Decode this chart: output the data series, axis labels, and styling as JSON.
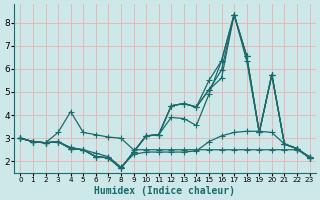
{
  "xlabel": "Humidex (Indice chaleur)",
  "ylabel": "",
  "bg_color": "#cde8e8",
  "grid_color": "#e8b8b8",
  "line_color": "#1a6b6b",
  "x_ticks": [
    0,
    1,
    2,
    3,
    4,
    5,
    6,
    7,
    8,
    9,
    10,
    11,
    12,
    13,
    14,
    15,
    16,
    17,
    18,
    19,
    20,
    21,
    22,
    23
  ],
  "y_ticks": [
    2,
    3,
    4,
    5,
    6,
    7,
    8
  ],
  "ylim": [
    1.5,
    8.8
  ],
  "xlim": [
    -0.5,
    23.5
  ],
  "lines": [
    {
      "x": [
        0,
        1,
        2,
        3,
        4,
        5,
        6,
        7,
        8,
        9,
        10,
        11,
        12,
        13,
        14,
        15,
        16,
        17,
        18,
        19,
        20,
        21,
        22,
        23
      ],
      "y": [
        3.0,
        2.85,
        2.8,
        3.25,
        4.15,
        3.25,
        3.15,
        3.05,
        3.0,
        2.5,
        2.5,
        2.5,
        2.5,
        2.5,
        2.5,
        2.5,
        2.5,
        2.5,
        2.5,
        2.5,
        2.5,
        2.5,
        2.5,
        2.2
      ]
    },
    {
      "x": [
        0,
        1,
        2,
        3,
        4,
        5,
        6,
        7,
        8,
        9,
        10,
        11,
        12,
        13,
        14,
        15,
        16,
        17,
        18,
        19,
        20,
        21,
        22,
        23
      ],
      "y": [
        3.0,
        2.85,
        2.8,
        2.85,
        2.6,
        2.5,
        2.35,
        2.2,
        1.75,
        2.3,
        2.4,
        2.4,
        2.4,
        2.4,
        2.45,
        2.85,
        3.1,
        3.25,
        3.3,
        3.3,
        3.25,
        2.75,
        2.55,
        2.2
      ]
    },
    {
      "x": [
        0,
        1,
        2,
        3,
        4,
        5,
        6,
        7,
        8,
        9,
        10,
        11,
        12,
        13,
        14,
        15,
        16,
        17,
        18,
        19,
        20,
        21,
        22,
        23
      ],
      "y": [
        3.0,
        2.85,
        2.8,
        2.85,
        2.55,
        2.5,
        2.2,
        2.15,
        1.7,
        2.4,
        3.1,
        3.15,
        3.9,
        3.85,
        3.55,
        4.9,
        6.35,
        8.35,
        6.35,
        3.25,
        5.75,
        2.75,
        2.55,
        2.15
      ]
    },
    {
      "x": [
        0,
        1,
        2,
        3,
        4,
        5,
        6,
        7,
        8,
        9,
        10,
        11,
        12,
        13,
        14,
        15,
        16,
        17,
        18,
        19,
        20,
        21,
        22,
        23
      ],
      "y": [
        3.0,
        2.85,
        2.8,
        2.85,
        2.55,
        2.5,
        2.2,
        2.15,
        1.7,
        2.4,
        3.1,
        3.15,
        4.4,
        4.5,
        4.35,
        5.5,
        6.35,
        8.35,
        6.55,
        3.25,
        5.75,
        2.75,
        2.55,
        2.15
      ]
    },
    {
      "x": [
        0,
        1,
        2,
        3,
        4,
        5,
        6,
        7,
        8,
        9,
        10,
        11,
        12,
        13,
        14,
        15,
        16,
        17,
        18,
        19,
        20,
        21,
        22,
        23
      ],
      "y": [
        3.0,
        2.85,
        2.8,
        2.85,
        2.55,
        2.5,
        2.2,
        2.15,
        1.7,
        2.4,
        3.1,
        3.15,
        4.4,
        4.5,
        4.35,
        5.1,
        5.95,
        8.35,
        6.55,
        3.25,
        5.75,
        2.75,
        2.55,
        2.15
      ]
    },
    {
      "x": [
        0,
        1,
        2,
        3,
        4,
        5,
        6,
        7,
        8,
        9,
        10,
        11,
        12,
        13,
        14,
        15,
        16,
        17,
        18,
        19,
        20,
        21,
        22,
        23
      ],
      "y": [
        3.0,
        2.85,
        2.8,
        2.85,
        2.55,
        2.5,
        2.2,
        2.15,
        1.7,
        2.4,
        3.1,
        3.15,
        4.4,
        4.5,
        4.35,
        5.1,
        5.6,
        8.35,
        6.55,
        3.25,
        5.75,
        2.75,
        2.55,
        2.15
      ]
    }
  ],
  "title_fontsize": 7,
  "axis_fontsize": 7,
  "tick_fontsize": 6.5,
  "marker": "+",
  "markersize": 4,
  "linewidth": 0.9
}
